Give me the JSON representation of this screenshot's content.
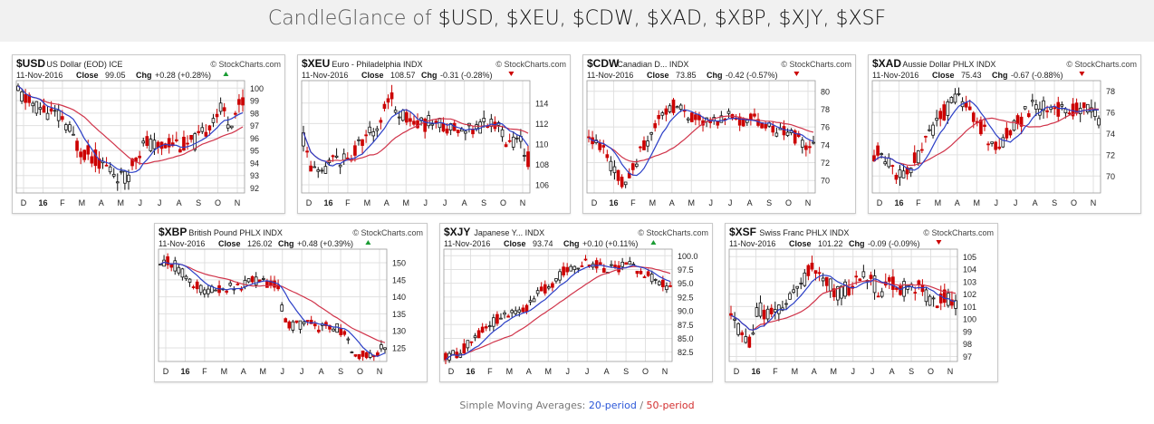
{
  "page": {
    "title_prefix": "CandleGlance of ",
    "title_symbols": "$USD, $XEU, $CDW, $XAD, $XBP, $XJY, $XSF"
  },
  "footer": {
    "label": "Simple Moving Averages: ",
    "ma20": "20-period",
    "sep": " / ",
    "ma50": "50-period"
  },
  "colors": {
    "candle_up": "#111111",
    "candle_down": "#cc0000",
    "ma20": "#2b3fc7",
    "ma50": "#d0344a",
    "up_triangle": "#1a9c33",
    "down_triangle": "#cc0000",
    "grid": "#e0e0e0"
  },
  "chart_data": [
    {
      "type": "candlestick",
      "symbol": "$USD",
      "name": "US Dollar (EOD)",
      "exchange": "ICE",
      "watermark": "© StockCharts.com",
      "date": "11-Nov-2016",
      "close_label": "Close",
      "close": "99.05",
      "chg_label": "Chg",
      "chg": "+0.28 (+0.28%)",
      "direction": "up",
      "x_ticks": [
        "D",
        "16",
        "F",
        "M",
        "A",
        "M",
        "J",
        "J",
        "A",
        "S",
        "O",
        "N"
      ],
      "y_ticks": [
        92,
        93,
        94,
        95,
        96,
        97,
        98,
        99,
        100
      ],
      "ylim": [
        91.6,
        100.6
      ],
      "trend": [
        [
          0,
          99.6
        ],
        [
          0.05,
          98.8
        ],
        [
          0.12,
          98.2
        ],
        [
          0.2,
          97.5
        ],
        [
          0.27,
          95.2
        ],
        [
          0.35,
          94.3
        ],
        [
          0.43,
          93.2
        ],
        [
          0.48,
          92.6
        ],
        [
          0.52,
          94.6
        ],
        [
          0.57,
          95.6
        ],
        [
          0.62,
          95.2
        ],
        [
          0.68,
          95.8
        ],
        [
          0.74,
          95.4
        ],
        [
          0.78,
          95.6
        ],
        [
          0.82,
          96.2
        ],
        [
          0.87,
          97.8
        ],
        [
          0.91,
          98.3
        ],
        [
          0.94,
          97.2
        ],
        [
          1,
          99.05
        ]
      ],
      "ma20_shift": 0.12,
      "ma50_shift": 0.3,
      "amp": 0.7,
      "seed": 11
    },
    {
      "type": "candlestick",
      "symbol": "$XEU",
      "name": "Euro - Philadelphia",
      "exchange": "INDX",
      "watermark": "© StockCharts.com",
      "date": "11-Nov-2016",
      "close_label": "Close",
      "close": "108.57",
      "chg_label": "Chg",
      "chg": "-0.31 (-0.28%)",
      "direction": "down",
      "x_ticks": [
        "D",
        "16",
        "F",
        "M",
        "A",
        "M",
        "J",
        "J",
        "A",
        "S",
        "O",
        "N"
      ],
      "y_ticks": [
        106,
        108,
        110,
        112,
        114
      ],
      "ylim": [
        105.2,
        116.2
      ],
      "trend": [
        [
          0,
          110.4
        ],
        [
          0.04,
          107.4
        ],
        [
          0.08,
          106.6
        ],
        [
          0.14,
          108.8
        ],
        [
          0.2,
          108.2
        ],
        [
          0.27,
          110.6
        ],
        [
          0.33,
          111.8
        ],
        [
          0.38,
          114.6
        ],
        [
          0.45,
          112.6
        ],
        [
          0.52,
          111.8
        ],
        [
          0.58,
          112.3
        ],
        [
          0.64,
          111.5
        ],
        [
          0.7,
          111.8
        ],
        [
          0.76,
          111.6
        ],
        [
          0.82,
          112.0
        ],
        [
          0.87,
          111.7
        ],
        [
          0.92,
          109.8
        ],
        [
          0.96,
          110.4
        ],
        [
          1,
          108.57
        ]
      ],
      "ma20_shift": 0.12,
      "ma50_shift": 0.3,
      "amp": 0.8,
      "seed": 23
    },
    {
      "type": "candlestick",
      "symbol": "$CDW",
      "name": "Canadian D...",
      "exchange": "INDX",
      "watermark": "© StockCharts.com",
      "date": "11-Nov-2016",
      "close_label": "Close",
      "close": "73.85",
      "chg_label": "Chg",
      "chg": "-0.42 (-0.57%)",
      "direction": "down",
      "x_ticks": [
        "D",
        "16",
        "F",
        "M",
        "A",
        "M",
        "J",
        "J",
        "A",
        "S",
        "O",
        "N"
      ],
      "y_ticks": [
        70,
        72,
        74,
        76,
        78,
        80
      ],
      "ylim": [
        68.6,
        81.2
      ],
      "trend": [
        [
          0,
          74.6
        ],
        [
          0.06,
          73.4
        ],
        [
          0.12,
          71.0
        ],
        [
          0.16,
          69.4
        ],
        [
          0.22,
          72.5
        ],
        [
          0.3,
          76.5
        ],
        [
          0.36,
          78.5
        ],
        [
          0.42,
          78.0
        ],
        [
          0.48,
          76.8
        ],
        [
          0.54,
          76.5
        ],
        [
          0.6,
          77.2
        ],
        [
          0.66,
          76.6
        ],
        [
          0.72,
          77.0
        ],
        [
          0.78,
          76.3
        ],
        [
          0.84,
          75.5
        ],
        [
          0.9,
          75.2
        ],
        [
          0.95,
          74.4
        ],
        [
          1,
          73.85
        ]
      ],
      "ma20_shift": 0.12,
      "ma50_shift": 0.3,
      "amp": 0.8,
      "seed": 37
    },
    {
      "type": "candlestick",
      "symbol": "$XAD",
      "name": "Aussie Dollar PHLX",
      "exchange": "INDX",
      "watermark": "© StockCharts.com",
      "date": "11-Nov-2016",
      "close_label": "Close",
      "close": "75.43",
      "chg_label": "Chg",
      "chg": "-0.67 (-0.88%)",
      "direction": "down",
      "x_ticks": [
        "D",
        "16",
        "F",
        "M",
        "A",
        "M",
        "J",
        "J",
        "A",
        "S",
        "O",
        "N"
      ],
      "y_ticks": [
        70,
        72,
        74,
        76,
        78
      ],
      "ylim": [
        68.4,
        79.0
      ],
      "trend": [
        [
          0,
          72.2
        ],
        [
          0.06,
          71.8
        ],
        [
          0.12,
          69.6
        ],
        [
          0.18,
          71.4
        ],
        [
          0.24,
          73.6
        ],
        [
          0.3,
          75.8
        ],
        [
          0.36,
          77.0
        ],
        [
          0.4,
          77.4
        ],
        [
          0.45,
          75.6
        ],
        [
          0.5,
          73.8
        ],
        [
          0.54,
          72.6
        ],
        [
          0.6,
          74.0
        ],
        [
          0.66,
          75.6
        ],
        [
          0.72,
          76.6
        ],
        [
          0.78,
          76.2
        ],
        [
          0.84,
          76.5
        ],
        [
          0.9,
          76.3
        ],
        [
          0.95,
          76.4
        ],
        [
          1,
          75.43
        ]
      ],
      "ma20_shift": 0.12,
      "ma50_shift": 0.3,
      "amp": 0.8,
      "seed": 53
    },
    {
      "type": "candlestick",
      "symbol": "$XBP",
      "name": "British Pound PHLX",
      "exchange": "INDX",
      "watermark": "© StockCharts.com",
      "date": "11-Nov-2016",
      "close_label": "Close",
      "close": "126.02",
      "chg_label": "Chg",
      "chg": "+0.48 (+0.39%)",
      "direction": "up",
      "x_ticks": [
        "D",
        "16",
        "F",
        "M",
        "A",
        "M",
        "J",
        "J",
        "A",
        "S",
        "O",
        "N"
      ],
      "y_ticks": [
        125,
        130,
        135,
        140,
        145,
        150
      ],
      "ylim": [
        121.0,
        154.0
      ],
      "trend": [
        [
          0,
          151.0
        ],
        [
          0.06,
          149.5
        ],
        [
          0.12,
          145.0
        ],
        [
          0.18,
          142.0
        ],
        [
          0.24,
          141.5
        ],
        [
          0.3,
          142.8
        ],
        [
          0.36,
          143.5
        ],
        [
          0.42,
          144.5
        ],
        [
          0.48,
          143.5
        ],
        [
          0.52,
          144.5
        ],
        [
          0.55,
          133.0
        ],
        [
          0.6,
          131.5
        ],
        [
          0.66,
          132.0
        ],
        [
          0.72,
          131.0
        ],
        [
          0.78,
          131.5
        ],
        [
          0.82,
          129.0
        ],
        [
          0.86,
          123.5
        ],
        [
          0.9,
          122.8
        ],
        [
          0.95,
          123.5
        ],
        [
          1,
          126.02
        ]
      ],
      "ma20_shift": 0.12,
      "ma50_shift": 0.3,
      "amp": 1.6,
      "seed": 71
    },
    {
      "type": "candlestick",
      "symbol": "$XJY",
      "name": "Japanese Y...",
      "exchange": "INDX",
      "watermark": "© StockCharts.com",
      "date": "11-Nov-2016",
      "close_label": "Close",
      "close": "93.74",
      "chg_label": "Chg",
      "chg": "+0.10 (+0.11%)",
      "direction": "up",
      "x_ticks": [
        "D",
        "16",
        "F",
        "M",
        "A",
        "M",
        "J",
        "J",
        "A",
        "S",
        "O",
        "N"
      ],
      "y_ticks": [
        "82.5",
        "85.0",
        "87.5",
        "90.0",
        "92.5",
        "95.0",
        "97.5",
        "100.0"
      ],
      "ylim": [
        80.8,
        101.2
      ],
      "trend": [
        [
          0,
          81.8
        ],
        [
          0.06,
          82.2
        ],
        [
          0.12,
          84.8
        ],
        [
          0.18,
          87.0
        ],
        [
          0.24,
          88.8
        ],
        [
          0.3,
          89.6
        ],
        [
          0.36,
          90.5
        ],
        [
          0.42,
          93.5
        ],
        [
          0.48,
          94.5
        ],
        [
          0.52,
          97.0
        ],
        [
          0.58,
          98.3
        ],
        [
          0.64,
          98.8
        ],
        [
          0.7,
          97.8
        ],
        [
          0.76,
          97.8
        ],
        [
          0.82,
          98.2
        ],
        [
          0.88,
          96.8
        ],
        [
          0.94,
          95.5
        ],
        [
          1,
          93.74
        ]
      ],
      "ma20_shift": 0.12,
      "ma50_shift": 0.3,
      "amp": 0.9,
      "seed": 89
    },
    {
      "type": "candlestick",
      "symbol": "$XSF",
      "name": "Swiss Franc PHLX",
      "exchange": "INDX",
      "watermark": "© StockCharts.com",
      "date": "11-Nov-2016",
      "close_label": "Close",
      "close": "101.22",
      "chg_label": "Chg",
      "chg": "-0.09 (-0.09%)",
      "direction": "down",
      "x_ticks": [
        "D",
        "16",
        "F",
        "M",
        "A",
        "M",
        "J",
        "J",
        "A",
        "S",
        "O",
        "N"
      ],
      "y_ticks": [
        97,
        98,
        99,
        100,
        101,
        102,
        103,
        104,
        105
      ],
      "ylim": [
        96.6,
        105.6
      ],
      "trend": [
        [
          0,
          100.8
        ],
        [
          0.04,
          99.0
        ],
        [
          0.08,
          98.0
        ],
        [
          0.12,
          100.8
        ],
        [
          0.18,
          100.5
        ],
        [
          0.24,
          101.0
        ],
        [
          0.3,
          102.6
        ],
        [
          0.36,
          104.0
        ],
        [
          0.42,
          103.2
        ],
        [
          0.48,
          102.0
        ],
        [
          0.54,
          102.8
        ],
        [
          0.6,
          103.6
        ],
        [
          0.66,
          102.4
        ],
        [
          0.72,
          102.8
        ],
        [
          0.78,
          102.3
        ],
        [
          0.84,
          102.6
        ],
        [
          0.9,
          101.5
        ],
        [
          0.95,
          101.8
        ],
        [
          1,
          101.22
        ]
      ],
      "ma20_shift": 0.12,
      "ma50_shift": 0.3,
      "amp": 0.7,
      "seed": 101
    }
  ]
}
